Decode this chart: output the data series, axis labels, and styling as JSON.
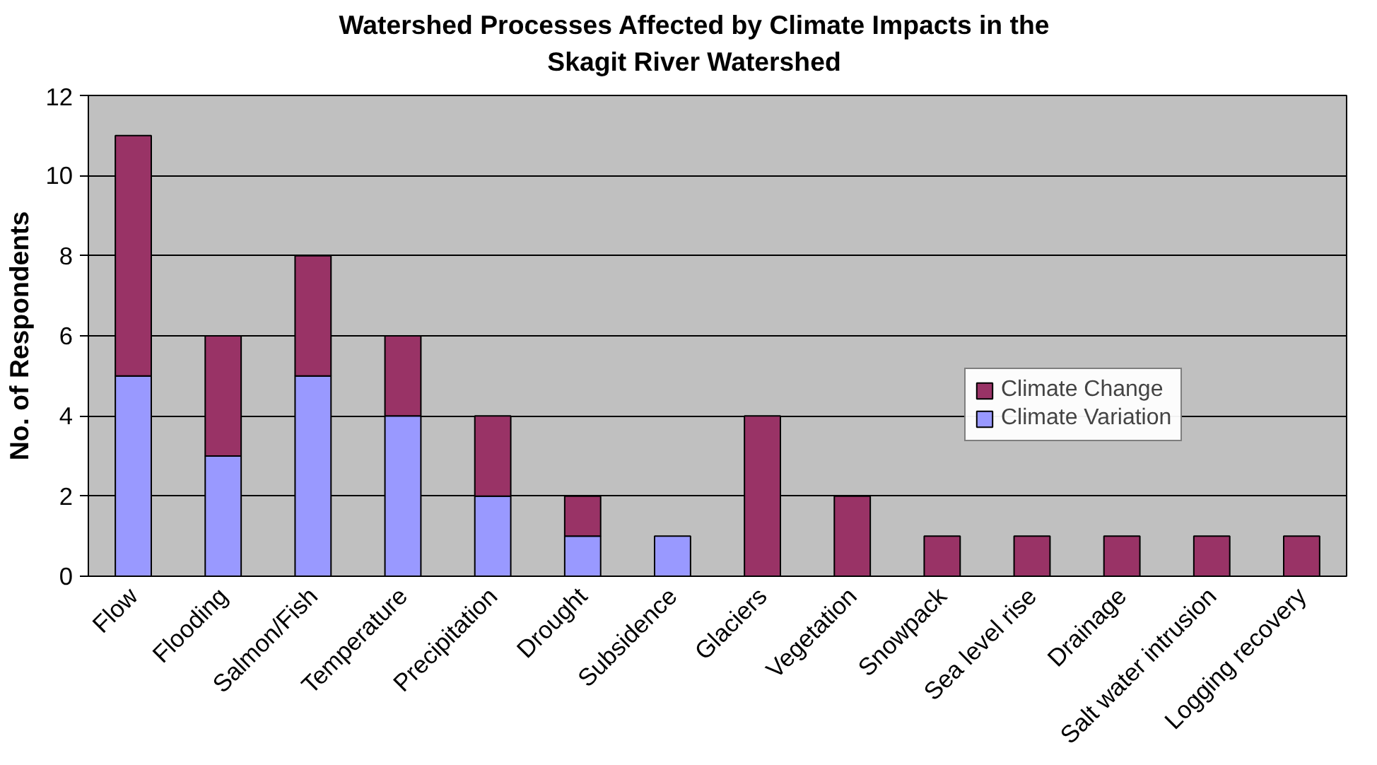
{
  "chart_data": {
    "type": "bar",
    "title": "Watershed Processes Affected by Climate Impacts in the\nSkagit River Watershed",
    "ylabel": "No. of Respondents",
    "categories": [
      "Flow",
      "Flooding",
      "Salmon/Fish",
      "Temperature",
      "Precipitation",
      "Drought",
      "Subsidence",
      "Glaciers",
      "Vegetation",
      "Snowpack",
      "Sea level rise",
      "Drainage",
      "Salt water intrusion",
      "Logging recovery"
    ],
    "stacked": true,
    "series": [
      {
        "name": "Climate Variation",
        "color": "#9999ff",
        "values": [
          5,
          3,
          5,
          4,
          2,
          1,
          1,
          0,
          0,
          0,
          0,
          0,
          0,
          0
        ]
      },
      {
        "name": "Climate Change",
        "color": "#993366",
        "values": [
          6,
          3,
          3,
          2,
          2,
          1,
          0,
          4,
          2,
          1,
          1,
          1,
          1,
          1
        ]
      }
    ],
    "ylim": [
      0,
      12
    ],
    "yticks": [
      0,
      2,
      4,
      6,
      8,
      10,
      12
    ],
    "grid": "y",
    "legend": "right"
  }
}
